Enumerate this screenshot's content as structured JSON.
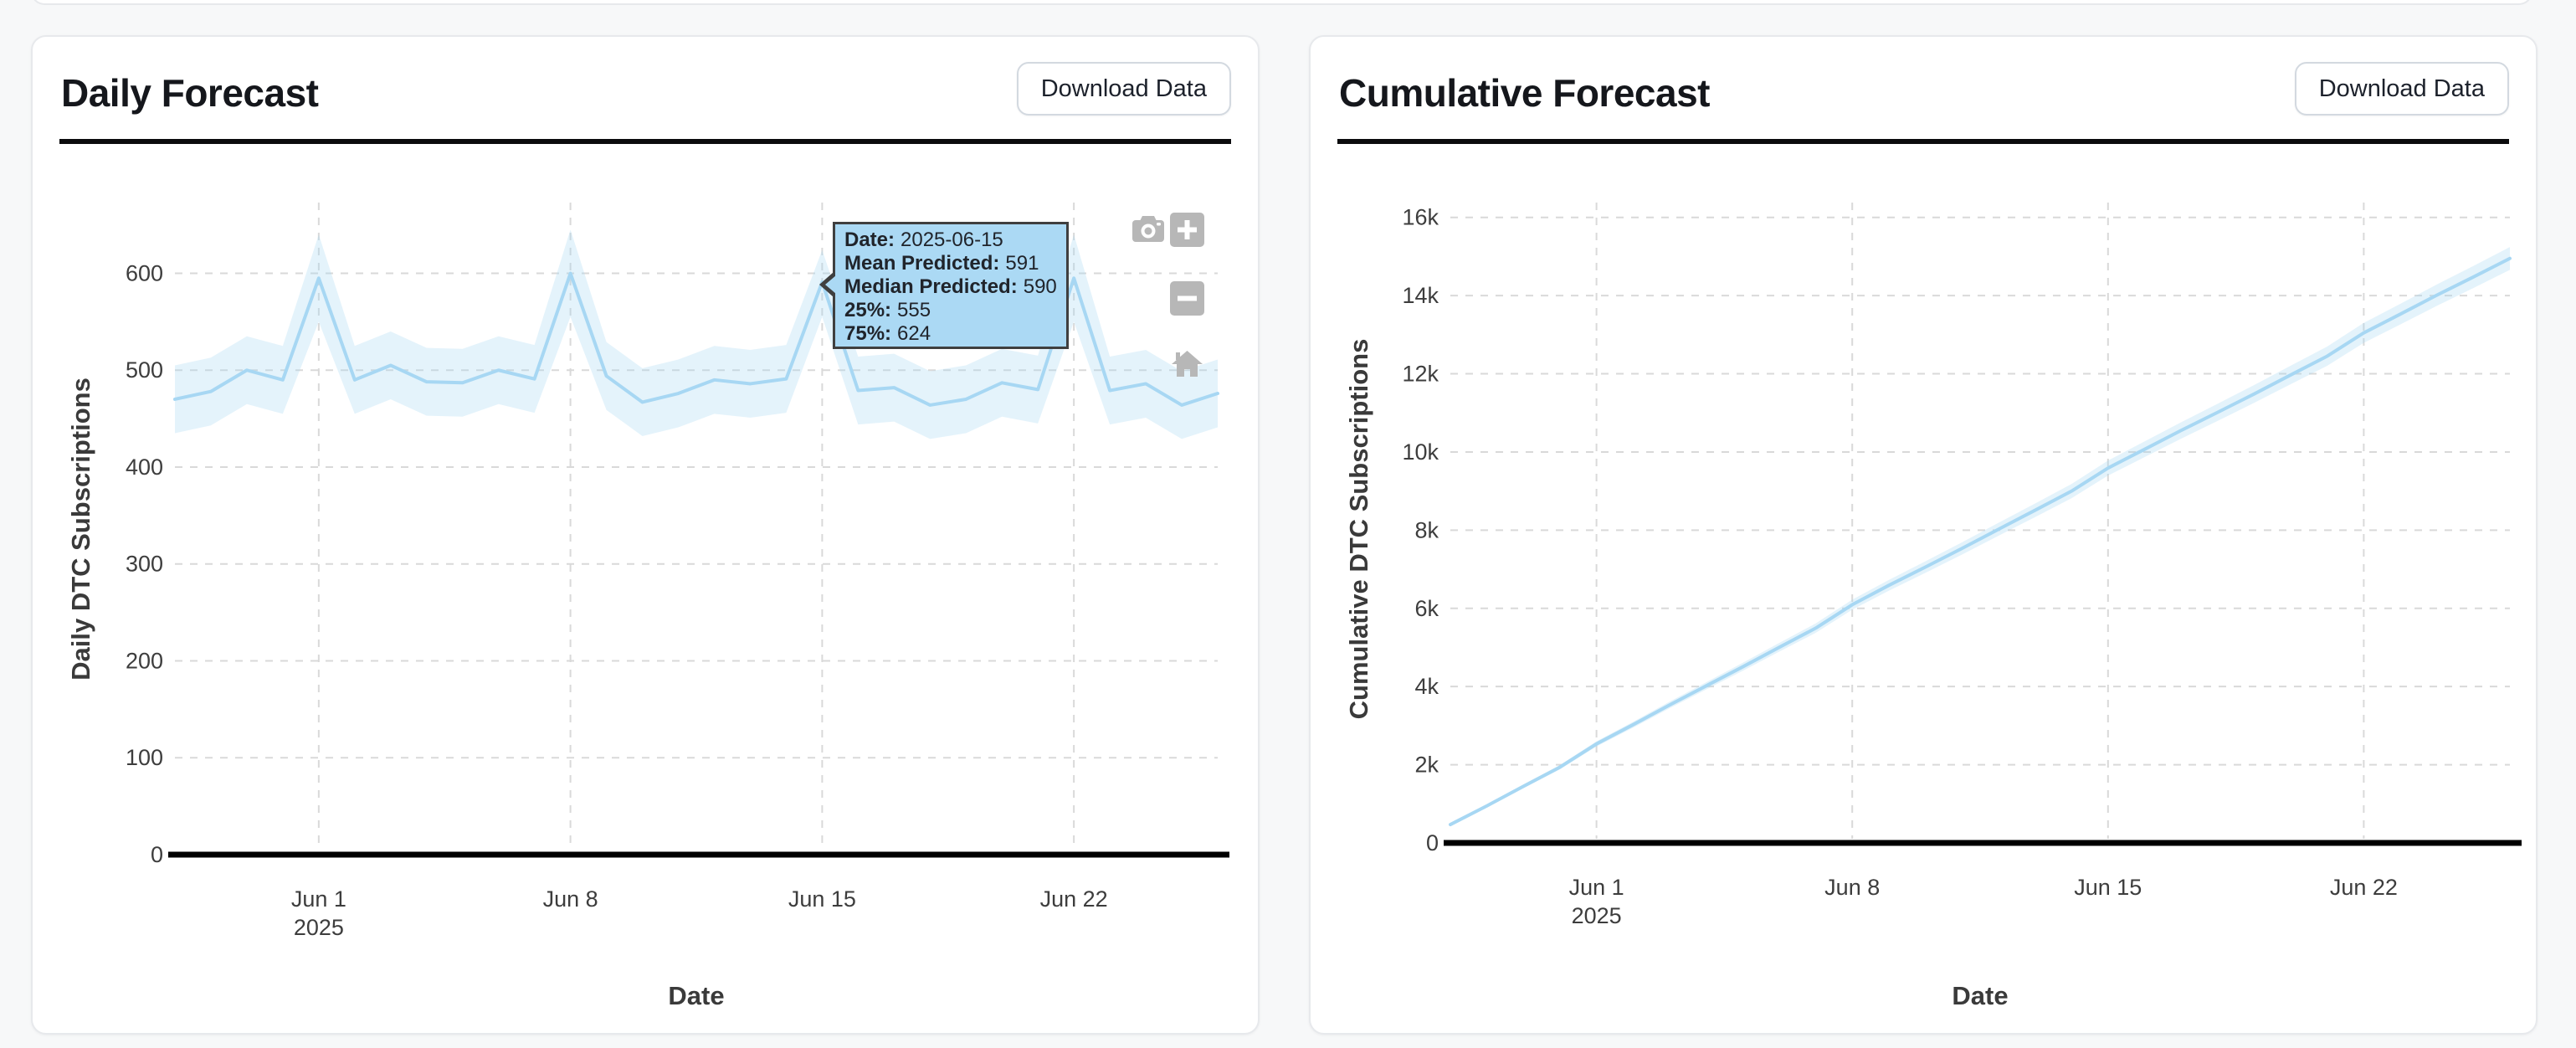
{
  "page": {
    "background": "#f7f8f9"
  },
  "panels": [
    {
      "title": "Daily Forecast",
      "download_label": "Download Data"
    },
    {
      "title": "Cumulative Forecast",
      "download_label": "Download Data"
    }
  ],
  "modebar": {
    "icons": [
      "camera",
      "zoom-in",
      "zoom-out",
      "home-reset"
    ]
  },
  "tooltip": {
    "rows": [
      {
        "label": "Date:",
        "value": "2025-06-15"
      },
      {
        "label": "Mean Predicted:",
        "value": "591"
      },
      {
        "label": "Median Predicted:",
        "value": "590"
      },
      {
        "label": "25%:",
        "value": "555"
      },
      {
        "label": "75%:",
        "value": "624"
      }
    ],
    "bg": "#abd9f4",
    "border": "#3f3f3f"
  },
  "colors": {
    "line": "#a7d7f3",
    "band": "rgba(167,215,243,0.30)",
    "grid": "#d9d9d9",
    "zeroline": "#000000",
    "tick_text": "#3d3d3d",
    "axis_title_text": "#3a3a3a",
    "card_border": "#e7e9ec",
    "header_rule": "#0b0b0d",
    "modebar_icon": "#b7b7b7"
  },
  "chart_data": [
    {
      "type": "line",
      "title": "Daily Forecast",
      "xlabel": "Date",
      "ylabel": "Daily DTC Subscriptions",
      "grid": "dashed",
      "legend": "none",
      "ylim": [
        0,
        673
      ],
      "x": [
        "2025-05-28",
        "2025-05-29",
        "2025-05-30",
        "2025-05-31",
        "2025-06-01",
        "2025-06-02",
        "2025-06-03",
        "2025-06-04",
        "2025-06-05",
        "2025-06-06",
        "2025-06-07",
        "2025-06-08",
        "2025-06-09",
        "2025-06-10",
        "2025-06-11",
        "2025-06-12",
        "2025-06-13",
        "2025-06-14",
        "2025-06-15",
        "2025-06-16",
        "2025-06-17",
        "2025-06-18",
        "2025-06-19",
        "2025-06-20",
        "2025-06-21",
        "2025-06-22",
        "2025-06-23",
        "2025-06-24",
        "2025-06-25",
        "2025-06-26"
      ],
      "series": [
        {
          "name": "Mean Predicted",
          "values": [
            470,
            478,
            500,
            490,
            595,
            490,
            505,
            488,
            487,
            500,
            491,
            600,
            494,
            467,
            476,
            490,
            486,
            491,
            591,
            479,
            482,
            464,
            470,
            487,
            480,
            595,
            479,
            486,
            464,
            476
          ]
        },
        {
          "name": "25%",
          "values": [
            435,
            443,
            465,
            455,
            550,
            455,
            470,
            453,
            452,
            465,
            456,
            555,
            459,
            432,
            441,
            455,
            451,
            456,
            555,
            444,
            447,
            429,
            435,
            452,
            445,
            550,
            444,
            451,
            429,
            441
          ]
        },
        {
          "name": "75%",
          "values": [
            505,
            513,
            535,
            525,
            640,
            525,
            540,
            523,
            522,
            535,
            526,
            645,
            529,
            502,
            511,
            525,
            521,
            526,
            624,
            514,
            517,
            499,
            505,
            522,
            515,
            640,
            514,
            521,
            499,
            511
          ]
        }
      ],
      "band": {
        "lower": "25%",
        "upper": "75%"
      },
      "yticks": [
        [
          0,
          "0"
        ],
        [
          100,
          "100"
        ],
        [
          200,
          "200"
        ],
        [
          300,
          "300"
        ],
        [
          400,
          "400"
        ],
        [
          500,
          "500"
        ],
        [
          600,
          "600"
        ]
      ],
      "xticks": [
        {
          "i": 4,
          "label": "Jun 1",
          "sublabel": "2025"
        },
        {
          "i": 11,
          "label": "Jun 8"
        },
        {
          "i": 18,
          "label": "Jun 15"
        },
        {
          "i": 25,
          "label": "Jun 22"
        }
      ]
    },
    {
      "type": "line",
      "title": "Cumulative Forecast",
      "xlabel": "Date",
      "ylabel": "Cumulative DTC Subscriptions",
      "grid": "dashed",
      "legend": "none",
      "ylim": [
        0,
        16380
      ],
      "x": [
        "2025-05-28",
        "2025-05-29",
        "2025-05-30",
        "2025-05-31",
        "2025-06-01",
        "2025-06-02",
        "2025-06-03",
        "2025-06-04",
        "2025-06-05",
        "2025-06-06",
        "2025-06-07",
        "2025-06-08",
        "2025-06-09",
        "2025-06-10",
        "2025-06-11",
        "2025-06-12",
        "2025-06-13",
        "2025-06-14",
        "2025-06-15",
        "2025-06-16",
        "2025-06-17",
        "2025-06-18",
        "2025-06-19",
        "2025-06-20",
        "2025-06-21",
        "2025-06-22",
        "2025-06-23",
        "2025-06-24",
        "2025-06-25",
        "2025-06-26"
      ],
      "series": [
        {
          "name": "Mean Predicted",
          "values": [
            470,
            948,
            1448,
            1938,
            2533,
            3023,
            3528,
            4016,
            4503,
            5003,
            5494,
            6094,
            6588,
            7055,
            7531,
            8021,
            8507,
            8998,
            9589,
            10068,
            10550,
            11014,
            11484,
            11971,
            12451,
            13046,
            13525,
            14011,
            14475,
            14951
          ]
        },
        {
          "name": "25%",
          "values": [
            440,
            909,
            1400,
            1881,
            2467,
            2948,
            3444,
            3923,
            4401,
            4892,
            5374,
            5965,
            6450,
            6908,
            7375,
            7856,
            8333,
            8815,
            9397,
            9867,
            10340,
            10795,
            11256,
            11734,
            12205,
            12791,
            13261,
            13738,
            14193,
            14660
          ]
        },
        {
          "name": "75%",
          "values": [
            500,
            987,
            1496,
            1995,
            2599,
            3098,
            3612,
            4109,
            4605,
            5114,
            5614,
            6223,
            6726,
            7202,
            7687,
            8186,
            8681,
            9181,
            9781,
            10269,
            10760,
            11233,
            11712,
            12208,
            12697,
            13301,
            13789,
            14284,
            14757,
            15242
          ]
        }
      ],
      "band": {
        "lower": "25%",
        "upper": "75%"
      },
      "yticks": [
        [
          0,
          "0"
        ],
        [
          2000,
          "2k"
        ],
        [
          4000,
          "4k"
        ],
        [
          6000,
          "6k"
        ],
        [
          8000,
          "8k"
        ],
        [
          10000,
          "10k"
        ],
        [
          12000,
          "12k"
        ],
        [
          14000,
          "14k"
        ],
        [
          16000,
          "16k"
        ]
      ],
      "xticks": [
        {
          "i": 4,
          "label": "Jun 1",
          "sublabel": "2025"
        },
        {
          "i": 11,
          "label": "Jun 8"
        },
        {
          "i": 18,
          "label": "Jun 15"
        },
        {
          "i": 25,
          "label": "Jun 22"
        }
      ]
    }
  ]
}
